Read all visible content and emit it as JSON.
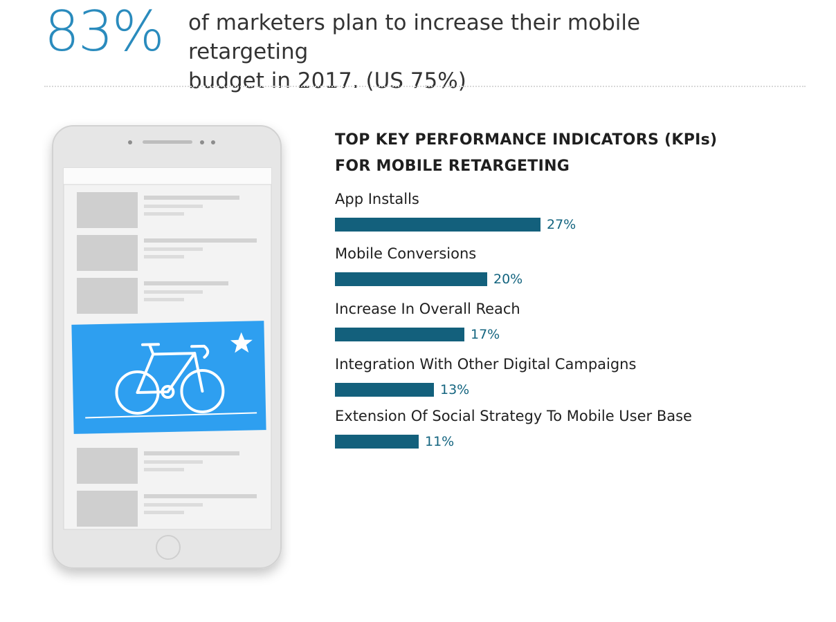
{
  "headline": {
    "stat": "83%",
    "text_line1": "of marketers plan to increase their mobile retargeting",
    "text_line2": "budget in 2017. (US 75%)"
  },
  "colors": {
    "accent": "#2a8bbd",
    "bar": "#13607c",
    "value_text": "#13647f",
    "ad_banner": "#2e9ff0",
    "phone_body": "#e6e6e6"
  },
  "illustration": {
    "icons": [
      "phone-icon",
      "bicycle-icon",
      "star-icon",
      "home-button-icon"
    ]
  },
  "chart_data": {
    "type": "bar",
    "orientation": "horizontal",
    "title_line1": "TOP KEY PERFORMANCE INDICATORS (KPIs)",
    "title_line2": "FOR MOBILE RETARGETING",
    "categories": [
      "App Installs",
      "Mobile Conversions",
      "Increase In Overall Reach",
      "Integration With Other Digital Campaigns",
      "Extension Of Social Strategy To Mobile User Base"
    ],
    "values": [
      27,
      20,
      17,
      13,
      11
    ],
    "value_labels": [
      "27%",
      "20%",
      "17%",
      "13%",
      "11%"
    ],
    "unit": "%",
    "grid": false,
    "legend": "none"
  }
}
